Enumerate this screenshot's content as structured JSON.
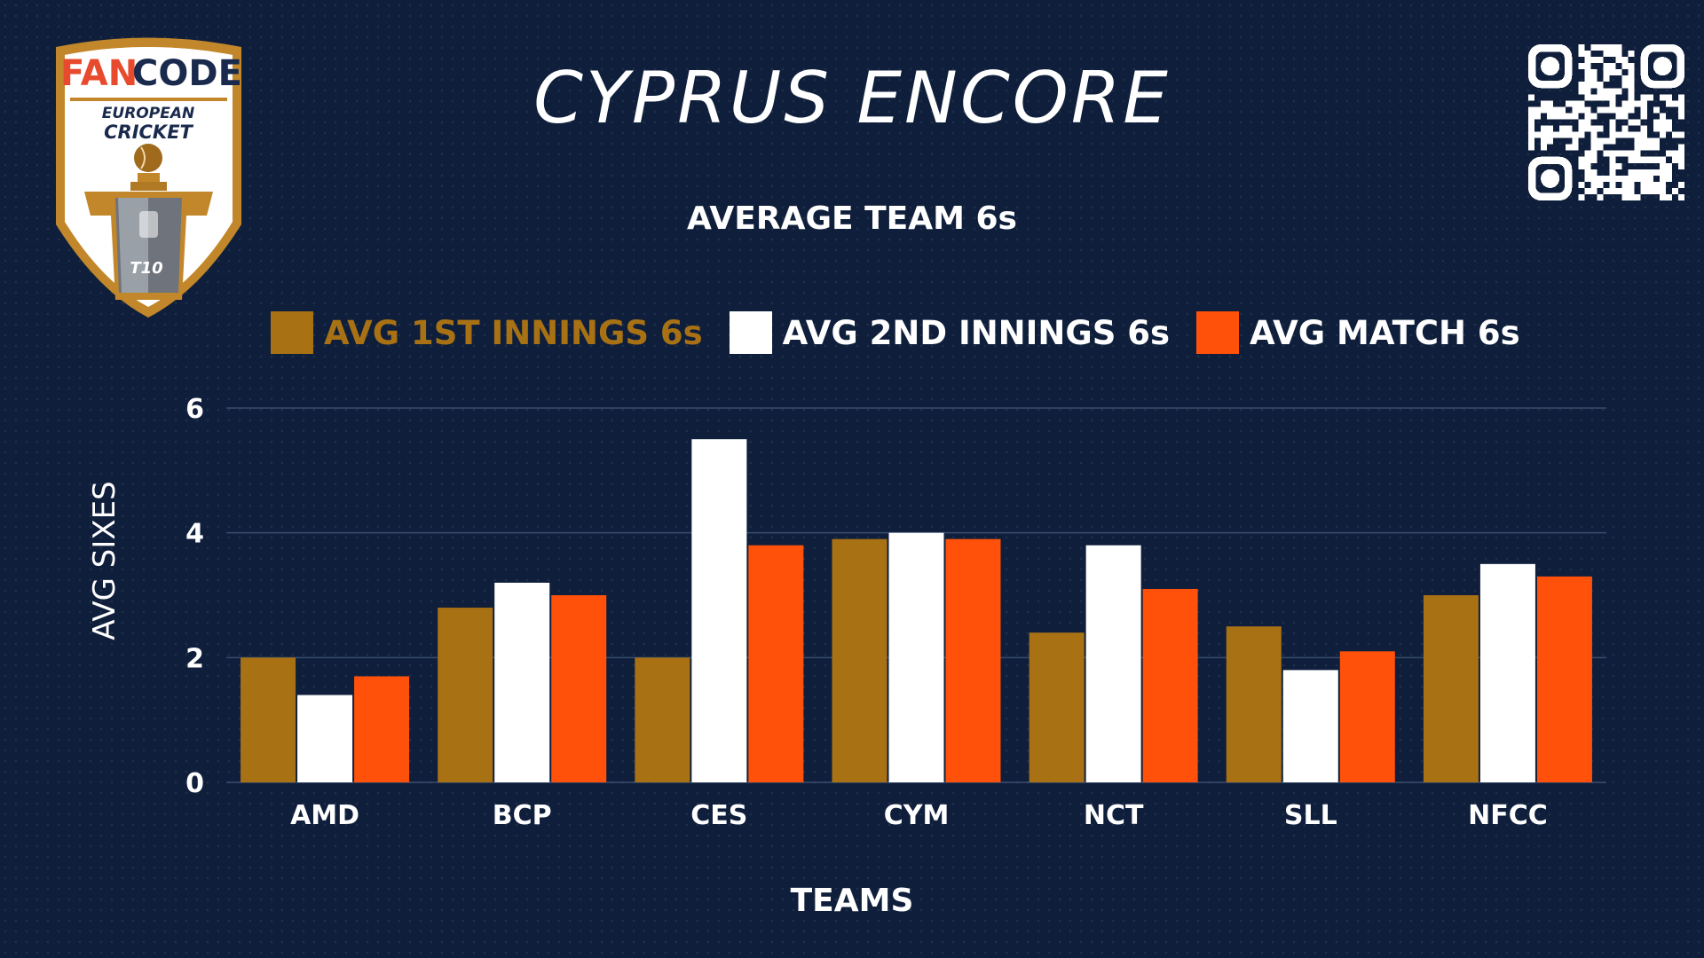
{
  "logo": {
    "brand_fan": "FAN",
    "brand_code": "CODE",
    "text_line1": "EUROPEAN",
    "text_line2": "CRICKET",
    "badge": "T10"
  },
  "headline": "CYPRUS ENCORE",
  "colors": {
    "background": "#0f1f3b",
    "first_innings": "#a87114",
    "second_innings": "#ffffff",
    "match": "#ff5109",
    "logo_gold": "#c2872a",
    "logo_red": "#e84a2e",
    "logo_navy": "#1a2a4d"
  },
  "icons": {
    "qr": "qr-code-icon"
  },
  "chart_data": {
    "type": "bar",
    "title": "AVERAGE TEAM 6s",
    "xlabel": "TEAMS",
    "ylabel": "AVG SIXES",
    "categories": [
      "AMD",
      "BCP",
      "CES",
      "CYM",
      "NCT",
      "SLL",
      "NFCC"
    ],
    "series": [
      {
        "name": "AVG 1ST INNINGS 6s",
        "color": "#a87114",
        "values": [
          2.0,
          2.8,
          2.0,
          3.9,
          2.4,
          2.5,
          3.0
        ]
      },
      {
        "name": "AVG 2ND INNINGS 6s",
        "color": "#ffffff",
        "values": [
          1.4,
          3.2,
          5.5,
          4.0,
          3.8,
          1.8,
          3.5
        ]
      },
      {
        "name": "AVG MATCH 6s",
        "color": "#ff5109",
        "values": [
          1.7,
          3.0,
          3.8,
          3.9,
          3.1,
          2.1,
          3.3
        ]
      }
    ],
    "yticks": [
      "0",
      "2",
      "4",
      "6"
    ],
    "ylim": [
      0,
      6
    ],
    "grid": true,
    "legend": "top"
  }
}
